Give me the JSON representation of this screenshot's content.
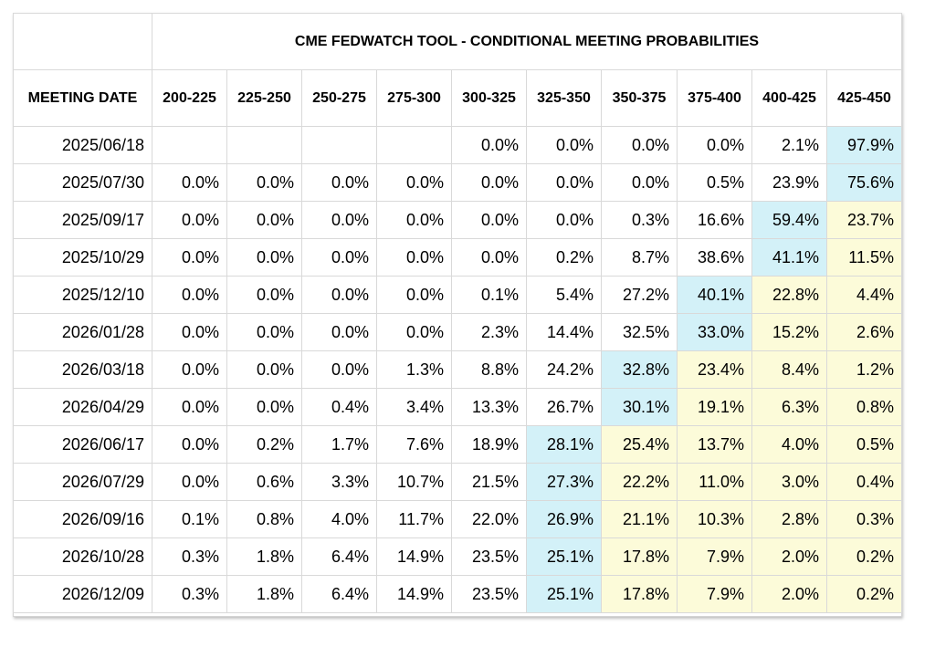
{
  "chart_data": {
    "type": "table",
    "title": "CME FEDWATCH TOOL - CONDITIONAL MEETING PROBABILITIES",
    "row_header_label": "MEETING DATE",
    "columns": [
      "200-225",
      "225-250",
      "250-275",
      "275-300",
      "300-325",
      "325-350",
      "350-375",
      "375-400",
      "400-425",
      "425-450"
    ],
    "rows": [
      {
        "date": "2025/06/18",
        "values": [
          "",
          "",
          "",
          "",
          "0.0%",
          "0.0%",
          "0.0%",
          "0.0%",
          "2.1%",
          "97.9%"
        ],
        "blue": 9
      },
      {
        "date": "2025/07/30",
        "values": [
          "0.0%",
          "0.0%",
          "0.0%",
          "0.0%",
          "0.0%",
          "0.0%",
          "0.0%",
          "0.5%",
          "23.9%",
          "75.6%"
        ],
        "blue": 9
      },
      {
        "date": "2025/09/17",
        "values": [
          "0.0%",
          "0.0%",
          "0.0%",
          "0.0%",
          "0.0%",
          "0.0%",
          "0.3%",
          "16.6%",
          "59.4%",
          "23.7%"
        ],
        "blue": 8
      },
      {
        "date": "2025/10/29",
        "values": [
          "0.0%",
          "0.0%",
          "0.0%",
          "0.0%",
          "0.0%",
          "0.2%",
          "8.7%",
          "38.6%",
          "41.1%",
          "11.5%"
        ],
        "blue": 8
      },
      {
        "date": "2025/12/10",
        "values": [
          "0.0%",
          "0.0%",
          "0.0%",
          "0.0%",
          "0.1%",
          "5.4%",
          "27.2%",
          "40.1%",
          "22.8%",
          "4.4%"
        ],
        "blue": 7
      },
      {
        "date": "2026/01/28",
        "values": [
          "0.0%",
          "0.0%",
          "0.0%",
          "0.0%",
          "2.3%",
          "14.4%",
          "32.5%",
          "33.0%",
          "15.2%",
          "2.6%"
        ],
        "blue": 7
      },
      {
        "date": "2026/03/18",
        "values": [
          "0.0%",
          "0.0%",
          "0.0%",
          "1.3%",
          "8.8%",
          "24.2%",
          "32.8%",
          "23.4%",
          "8.4%",
          "1.2%"
        ],
        "blue": 6
      },
      {
        "date": "2026/04/29",
        "values": [
          "0.0%",
          "0.0%",
          "0.4%",
          "3.4%",
          "13.3%",
          "26.7%",
          "30.1%",
          "19.1%",
          "6.3%",
          "0.8%"
        ],
        "blue": 6
      },
      {
        "date": "2026/06/17",
        "values": [
          "0.0%",
          "0.2%",
          "1.7%",
          "7.6%",
          "18.9%",
          "28.1%",
          "25.4%",
          "13.7%",
          "4.0%",
          "0.5%"
        ],
        "blue": 5
      },
      {
        "date": "2026/07/29",
        "values": [
          "0.0%",
          "0.6%",
          "3.3%",
          "10.7%",
          "21.5%",
          "27.3%",
          "22.2%",
          "11.0%",
          "3.0%",
          "0.4%"
        ],
        "blue": 5
      },
      {
        "date": "2026/09/16",
        "values": [
          "0.1%",
          "0.8%",
          "4.0%",
          "11.7%",
          "22.0%",
          "26.9%",
          "21.1%",
          "10.3%",
          "2.8%",
          "0.3%"
        ],
        "blue": 5
      },
      {
        "date": "2026/10/28",
        "values": [
          "0.3%",
          "1.8%",
          "6.4%",
          "14.9%",
          "23.5%",
          "25.1%",
          "17.8%",
          "7.9%",
          "2.0%",
          "0.2%"
        ],
        "blue": 5
      },
      {
        "date": "2026/12/09",
        "values": [
          "0.3%",
          "1.8%",
          "6.4%",
          "14.9%",
          "23.5%",
          "25.1%",
          "17.8%",
          "7.9%",
          "2.0%",
          "0.2%"
        ],
        "blue": 5
      }
    ],
    "highlight_colors": {
      "current_meeting_target": "#d3f1f8",
      "above_target": "#fcfbd9"
    }
  }
}
